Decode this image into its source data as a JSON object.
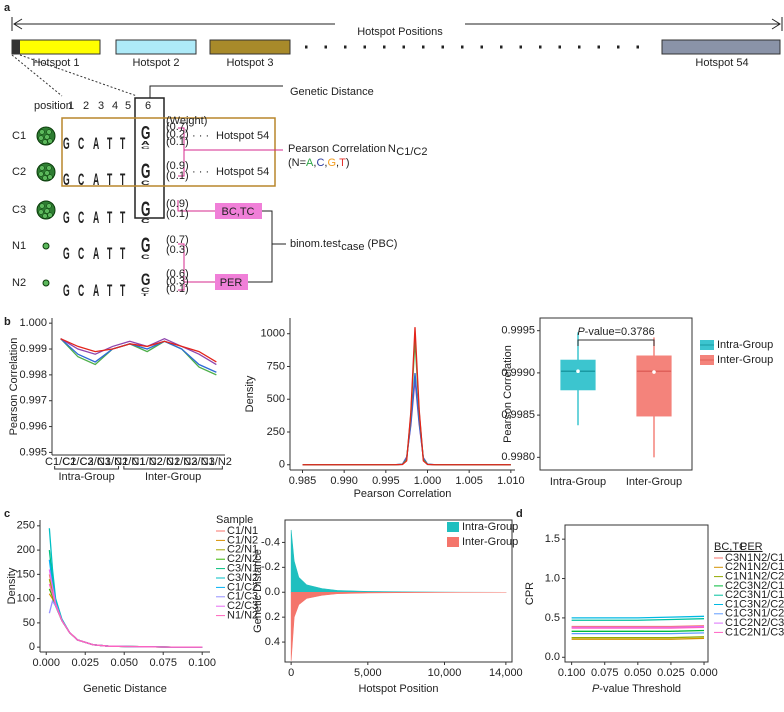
{
  "panel_a": {
    "label": "a",
    "title": "Hotspot Positions",
    "hotspots": [
      "Hotspot 1",
      "Hotspot 2",
      "Hotspot 3",
      "Hotspot 54"
    ],
    "position_label": "position",
    "positions": [
      "1",
      "2",
      "3",
      "4",
      "5",
      "6"
    ],
    "weight_label": "(Weight)",
    "genetic_distance": "Genetic Distance",
    "motif": [
      "G",
      "C",
      "A",
      "T",
      "T"
    ],
    "letter_colors": {
      "G": "#f29d1f",
      "C": "#2b3a9c",
      "A": "#2ca444",
      "T": "#e3302b"
    },
    "rows": [
      {
        "name": "C1",
        "last": [
          "G",
          "A",
          "C"
        ],
        "weights": [
          "(0.7)",
          "(0.2)",
          "(0.1)"
        ]
      },
      {
        "name": "C2",
        "last": [
          "G",
          "C"
        ],
        "weights": [
          "(0.9)",
          "(0.1)"
        ]
      },
      {
        "name": "C3",
        "last": [
          "G",
          "C"
        ],
        "weights": [
          "(0.9)",
          "(0.1)"
        ]
      },
      {
        "name": "N1",
        "last": [
          "G",
          "C"
        ],
        "weights": [
          "(0.7)",
          "(0.3)"
        ]
      },
      {
        "name": "N2",
        "last": [
          "G",
          "C",
          "T"
        ],
        "weights": [
          "(0.6)",
          "(0.3)",
          "(0.1)"
        ]
      }
    ],
    "ellipsis": "· · ·",
    "hotspot_note": "Hotspot 54",
    "pearson": "Pearson Correlation",
    "pearson_n": "N",
    "pearson_sub": "C1/C2",
    "n_note": [
      "(N=",
      "A",
      ",",
      "C",
      ",",
      "G",
      ",",
      "T",
      ")"
    ],
    "bc_tc": "BC,TC",
    "per": "PER",
    "binom": "binom.test",
    "binom_sub": "case",
    "binom_after": "(PBC)"
  },
  "panel_labels": [
    "b",
    "c",
    "d"
  ],
  "chart_data": [
    {
      "type": "line",
      "categories": [
        "C1/C2",
        "C1/C3",
        "C2/C3",
        "N1/N2",
        "C1/N1",
        "C1/N2",
        "C2/N1",
        "C2/N2",
        "C3/N1",
        "C3/N2"
      ],
      "group_labels": [
        "Intra-Group",
        "Inter-Group"
      ],
      "ylabel": "Pearson Correlation",
      "ylim": [
        0.9949,
        1.0002
      ],
      "yticks": [
        0.995,
        0.996,
        0.997,
        0.998,
        0.999,
        {
          "value": 1,
          "label": "1.000"
        }
      ],
      "series": [
        {
          "color": "#4daf4a",
          "values": [
            0.9994,
            0.9987,
            0.9984,
            0.999,
            0.9992,
            0.9989,
            0.9993,
            0.999,
            0.9983,
            0.998
          ]
        },
        {
          "color": "#2d6bd6",
          "values": [
            0.9994,
            0.9988,
            0.9985,
            0.999,
            0.9992,
            0.999,
            0.9993,
            0.999,
            0.9984,
            0.9981
          ]
        },
        {
          "color": "#8e44ad",
          "values": [
            0.9994,
            0.999,
            0.9988,
            0.9991,
            0.9993,
            0.9991,
            0.9994,
            0.9991,
            0.9988,
            0.9984
          ]
        },
        {
          "color": "#e3241b",
          "values": [
            0.9994,
            0.9991,
            0.9989,
            0.999,
            0.9992,
            0.9991,
            0.9993,
            0.9991,
            0.9989,
            0.9985
          ]
        }
      ]
    },
    {
      "type": "line",
      "xlabel": "Pearson Correlation",
      "ylabel": "Density",
      "x": [
        0.985,
        0.996,
        0.997,
        0.9975,
        0.998,
        0.9985,
        0.999,
        0.9995,
        1.0,
        1.001,
        1.01
      ],
      "xlim": [
        0.9835,
        1.0105
      ],
      "ylim": [
        -40,
        1120
      ],
      "xticks": [
        0.985,
        {
          "value": 0.99,
          "label": "0.990"
        },
        0.995,
        {
          "value": 1,
          "label": "1.000"
        },
        1.005,
        {
          "value": 1.01,
          "label": "1.010"
        }
      ],
      "yticks": [
        0,
        250,
        500,
        750,
        1000
      ],
      "series": [
        {
          "color": "#8e44ad",
          "values": [
            0,
            0,
            5,
            60,
            300,
            650,
            310,
            55,
            5,
            0,
            0
          ]
        },
        {
          "color": "#2d6bd6",
          "values": [
            0,
            0,
            4,
            50,
            320,
            700,
            330,
            50,
            4,
            0,
            0
          ]
        },
        {
          "color": "#4daf4a",
          "values": [
            0,
            0,
            3,
            40,
            380,
            950,
            400,
            40,
            3,
            0,
            0
          ]
        },
        {
          "color": "#e3241b",
          "values": [
            0,
            0,
            2,
            30,
            400,
            1050,
            420,
            30,
            2,
            0,
            0
          ]
        }
      ]
    },
    {
      "type": "box",
      "categories": [
        "Intra-Group",
        "Inter-Group"
      ],
      "ylabel": "Pearson Correlation",
      "ylim": [
        0.99785,
        0.99965
      ],
      "yticks": [
        {
          "value": 0.998,
          "label": "0.9980"
        },
        0.9985,
        {
          "value": 0.999,
          "label": "0.9990"
        },
        0.9995
      ],
      "colors": [
        "#3cc5cf",
        "#f4837b"
      ],
      "median_colors": [
        "#1a9aa3",
        "#e0605a"
      ],
      "annotation": "P-value=0.3786",
      "boxes": [
        {
          "min": 0.99838,
          "q1": 0.9988,
          "median": 0.99902,
          "q3": 0.99915,
          "max": 0.99948,
          "mean": 0.99902
        },
        {
          "min": 0.998,
          "q1": 0.99849,
          "median": 0.99902,
          "q3": 0.9992,
          "max": 0.99942,
          "mean": 0.99901
        }
      ]
    },
    {
      "type": "line",
      "xlabel": "Genetic Distance",
      "ylabel": "Density",
      "legend_title": "Sample",
      "x": [
        0.002,
        0.004,
        0.006,
        0.01,
        0.015,
        0.02,
        0.03,
        0.04,
        0.06,
        0.08,
        0.1
      ],
      "xlim": [
        -0.004,
        0.105
      ],
      "ylim": [
        -10,
        262
      ],
      "xticks": [
        {
          "value": 0,
          "label": "0.000"
        },
        0.025,
        {
          "value": 0.05,
          "label": "0.050"
        },
        0.075,
        {
          "value": 0.1,
          "label": "0.100"
        }
      ],
      "yticks": [
        0,
        50,
        100,
        150,
        200,
        250
      ],
      "series": [
        {
          "name": "C1/N1",
          "color": "#f8766d",
          "values": [
            150,
            120,
            90,
            55,
            30,
            15,
            5,
            2,
            1,
            0,
            0
          ]
        },
        {
          "name": "C1/N2",
          "color": "#d89000",
          "values": [
            110,
            100,
            85,
            55,
            30,
            15,
            5,
            2,
            1,
            0,
            0
          ]
        },
        {
          "name": "C2/N1",
          "color": "#a3a500",
          "values": [
            140,
            115,
            88,
            55,
            30,
            15,
            5,
            2,
            1,
            0,
            0
          ]
        },
        {
          "name": "C2/N2",
          "color": "#39b600",
          "values": [
            120,
            105,
            85,
            55,
            30,
            15,
            5,
            2,
            1,
            0,
            0
          ]
        },
        {
          "name": "C3/N1",
          "color": "#00bf7d",
          "values": [
            200,
            140,
            95,
            55,
            30,
            15,
            5,
            2,
            1,
            0,
            0
          ]
        },
        {
          "name": "C3/N2",
          "color": "#00bfc4",
          "values": [
            245,
            160,
            100,
            58,
            30,
            15,
            5,
            2,
            1,
            0,
            0
          ]
        },
        {
          "name": "C1/C2",
          "color": "#00b0f6",
          "values": [
            180,
            130,
            92,
            55,
            30,
            15,
            5,
            2,
            1,
            0,
            0
          ]
        },
        {
          "name": "C1/C3",
          "color": "#9590ff",
          "values": [
            70,
            95,
            85,
            55,
            30,
            15,
            5,
            2,
            1,
            0,
            0
          ]
        },
        {
          "name": "C2/C3",
          "color": "#e76bf3",
          "values": [
            160,
            125,
            90,
            55,
            30,
            15,
            5,
            2,
            1,
            0,
            0
          ]
        },
        {
          "name": "N1/N2",
          "color": "#ff62bc",
          "values": [
            130,
            110,
            88,
            55,
            30,
            15,
            5,
            2,
            1,
            0,
            0
          ]
        }
      ]
    },
    {
      "type": "area",
      "xlabel": "Hotspot Position",
      "ylabel": "Genetic Distance",
      "x": [
        0,
        200,
        500,
        1000,
        2000,
        3000,
        5000,
        8000,
        11000,
        14000
      ],
      "xlim": [
        -400,
        14400
      ],
      "ylim": [
        0.56,
        -0.58
      ],
      "xticks": [
        0,
        {
          "value": 5000,
          "label": "5,000"
        },
        {
          "value": 10000,
          "label": "10,000"
        },
        {
          "value": 14000,
          "label": "14,000"
        }
      ],
      "yticks": [
        -0.4,
        -0.2,
        {
          "value": 0,
          "label": "0.0"
        },
        0.2,
        0.4
      ],
      "series": [
        {
          "name": "Intra-Group",
          "color": "#1fbfbf",
          "values": [
            -0.5,
            -0.25,
            -0.12,
            -0.06,
            -0.03,
            -0.015,
            -0.007,
            -0.003,
            -0.001,
            0
          ]
        },
        {
          "name": "Inter-Group",
          "color": "#f4756b",
          "values": [
            0.55,
            0.2,
            0.1,
            0.05,
            0.025,
            0.012,
            0.006,
            0.003,
            0.001,
            0
          ]
        }
      ]
    },
    {
      "type": "line",
      "xlabel": "P-value Threshold",
      "ylabel": "CPR",
      "legend_headers": [
        "BC,TC",
        "PER"
      ],
      "x": [
        0.1,
        0.075,
        0.05,
        0.025,
        0
      ],
      "xlim": [
        0.105,
        -0.003
      ],
      "ylim": [
        -0.06,
        1.68
      ],
      "xticks": [
        {
          "value": 0.1,
          "label": "0.100"
        },
        0.075,
        {
          "value": 0.05,
          "label": "0.050"
        },
        0.025,
        {
          "value": 0,
          "label": "0.000"
        }
      ],
      "yticks": [
        {
          "value": 0,
          "label": "0.0"
        },
        0.5,
        {
          "value": 1,
          "label": "1.0"
        },
        1.5
      ],
      "series": [
        {
          "name": "C3N1N2/C1C2",
          "color": "#f8766d",
          "values": [
            0.39,
            0.39,
            0.39,
            0.39,
            0.4
          ]
        },
        {
          "name": "C2N1N2/C1C3",
          "color": "#d39200",
          "values": [
            0.23,
            0.23,
            0.23,
            0.23,
            0.24
          ]
        },
        {
          "name": "C1N1N2/C2C3",
          "color": "#93aa00",
          "values": [
            0.25,
            0.25,
            0.25,
            0.25,
            0.26
          ]
        },
        {
          "name": "C2C3N2/C1N1",
          "color": "#00ba38",
          "values": [
            0.33,
            0.33,
            0.33,
            0.33,
            0.34
          ]
        },
        {
          "name": "C2C3N1/C1N2",
          "color": "#00c19f",
          "values": [
            0.47,
            0.47,
            0.47,
            0.48,
            0.49
          ]
        },
        {
          "name": "C1C3N2/C2N1",
          "color": "#00b9e3",
          "values": [
            0.5,
            0.5,
            0.5,
            0.51,
            0.52
          ]
        },
        {
          "name": "C1C3N1/C2N2",
          "color": "#619cff",
          "values": [
            0.3,
            0.3,
            0.3,
            0.3,
            0.31
          ]
        },
        {
          "name": "C1C2N2/C3N1",
          "color": "#db72fb",
          "values": [
            0.38,
            0.38,
            0.38,
            0.38,
            0.39
          ]
        },
        {
          "name": "C1C2N1/C3N2",
          "color": "#ff61c3",
          "values": [
            0.37,
            0.37,
            0.37,
            0.37,
            0.38
          ]
        }
      ]
    }
  ]
}
